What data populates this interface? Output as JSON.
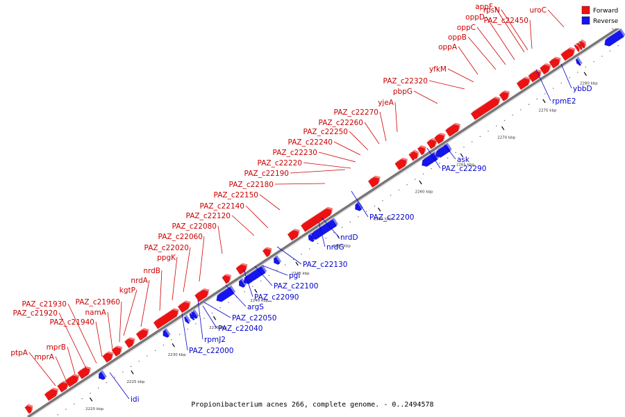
{
  "caption": "Propionibacterium acnes 266, complete genome. - 0..2494578",
  "colors": {
    "forward": "#ee1111",
    "reverse": "#1515ee",
    "forward_label": "#cc0000",
    "reverse_label": "#0000cc",
    "backbone": "#777777"
  },
  "legend": [
    {
      "label": "Forward",
      "color": "#ee1111"
    },
    {
      "label": "Reverse",
      "color": "#1515ee"
    }
  ],
  "ticks": [
    "2220 kbp",
    "2225 kbp",
    "2230 kbp",
    "2235 kbp",
    "2240 kbp",
    "2245 kbp",
    "2250 kbp",
    "2255 kbp",
    "2260 kbp",
    "2265 kbp",
    "2270 kbp",
    "2275 kbp",
    "2280 kbp"
  ],
  "forward_genes": [
    "ptpA",
    "mprA",
    "mprB",
    "PAZ_c21920",
    "PAZ_c21930",
    "PAZ_c21940",
    "namA",
    "PAZ_c21960",
    "kgtP",
    "nrdA",
    "nrdB",
    "ppgK",
    "PAZ_c22020",
    "PAZ_c22060",
    "PAZ_c22080",
    "PAZ_c22120",
    "PAZ_c22140",
    "PAZ_c22150",
    "PAZ_c22180",
    "PAZ_c22190",
    "PAZ_c22220",
    "PAZ_c22230",
    "PAZ_c22240",
    "PAZ_c22250",
    "PAZ_c22260",
    "PAZ_c22270",
    "yjeA",
    "pbpG",
    "PAZ_c22320",
    "yfkM",
    "oppA",
    "oppB",
    "oppC",
    "oppD",
    "appF",
    "rpsN",
    "PAZ_c22450",
    "uroC"
  ],
  "reverse_genes": [
    "idi",
    "PAZ_c22000",
    "rpmJ2",
    "PAZ_c22040",
    "PAZ_c22050",
    "argS",
    "PAZ_c22090",
    "PAZ_c22100",
    "pgi",
    "PAZ_c22130",
    "nrdG",
    "nrdD",
    "PAZ_c22200",
    "PAZ_c22290",
    "ask",
    "rpmE2",
    "ybbD"
  ]
}
